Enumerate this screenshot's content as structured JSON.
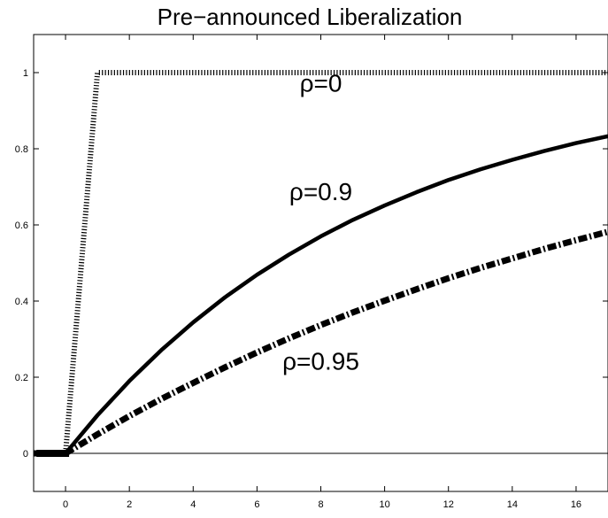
{
  "chart_data": {
    "type": "line",
    "title": "Pre−announced Liberalization",
    "xlabel": "",
    "ylabel": "",
    "xlim": [
      -1,
      17
    ],
    "ylim": [
      -0.1,
      1.1
    ],
    "grid": false,
    "x_ticks": [
      0,
      2,
      4,
      6,
      8,
      10,
      12,
      14,
      16
    ],
    "y_ticks": [
      0,
      0.2,
      0.4,
      0.6,
      0.8,
      1
    ],
    "x_tick_labels": [
      "0",
      "2",
      "4",
      "6",
      "8",
      "10",
      "12",
      "14",
      "16"
    ],
    "y_tick_labels": [
      "0",
      "0.2",
      "0.4",
      "0.6",
      "0.8",
      "1"
    ],
    "series": [
      {
        "name": "ρ=0",
        "style": "dotted",
        "x": [
          -1,
          0,
          1,
          2,
          3,
          4,
          5,
          6,
          7,
          8,
          9,
          10,
          11,
          12,
          13,
          14,
          15,
          16,
          17
        ],
        "values": [
          0,
          0,
          1,
          1,
          1,
          1,
          1,
          1,
          1,
          1,
          1,
          1,
          1,
          1,
          1,
          1,
          1,
          1,
          1
        ]
      },
      {
        "name": "ρ=0.9",
        "style": "solid",
        "x": [
          -1,
          0,
          1,
          2,
          3,
          4,
          5,
          6,
          7,
          8,
          9,
          10,
          11,
          12,
          13,
          14,
          15,
          16,
          17
        ],
        "values": [
          0,
          0,
          0.1,
          0.19,
          0.271,
          0.344,
          0.41,
          0.469,
          0.522,
          0.57,
          0.613,
          0.651,
          0.686,
          0.718,
          0.746,
          0.771,
          0.794,
          0.815,
          0.833
        ]
      },
      {
        "name": "ρ=0.95",
        "style": "dash-dot",
        "x": [
          -1,
          0,
          1,
          2,
          3,
          4,
          5,
          6,
          7,
          8,
          9,
          10,
          11,
          12,
          13,
          14,
          15,
          16,
          17
        ],
        "values": [
          0,
          0,
          0.05,
          0.098,
          0.143,
          0.185,
          0.226,
          0.265,
          0.302,
          0.337,
          0.37,
          0.401,
          0.431,
          0.46,
          0.487,
          0.512,
          0.537,
          0.56,
          0.582
        ]
      }
    ],
    "annotations": [
      {
        "text": "ρ=0",
        "x": 8,
        "y": 0.95
      },
      {
        "text": "ρ=0.9",
        "x": 8,
        "y": 0.665
      },
      {
        "text": "ρ=0.95",
        "x": 8,
        "y": 0.22
      }
    ],
    "reference_line_y": 0
  }
}
